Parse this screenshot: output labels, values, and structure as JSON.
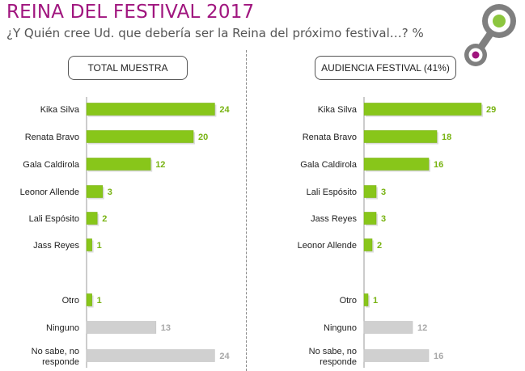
{
  "header": {
    "title": "REINA DEL FESTIVAL 2017",
    "subtitle": "¿Y Quién cree Ud. que debería ser la Reina del próximo festival…? %"
  },
  "colors": {
    "title": "#a0157e",
    "bar_green": "#88c61a",
    "bar_gray": "#d0d0d0",
    "value_green": "#78b312",
    "value_gray": "#a8a8a8",
    "logo_gray": "#7f7f7f",
    "logo_green": "#8cc63f",
    "logo_magenta": "#a0157e"
  },
  "chart_data": [
    {
      "type": "bar",
      "orientation": "horizontal",
      "title": "TOTAL MUESTRA",
      "unit": "%",
      "categories": [
        "Kika Silva",
        "Renata Bravo",
        "Gala Caldirola",
        "Leonor Allende",
        "Lali Espósito",
        "Jass Reyes",
        "",
        "Otro",
        "Ninguno",
        "No sabe, no responde"
      ],
      "values": [
        24,
        20,
        12,
        3,
        2,
        1,
        null,
        1,
        13,
        24
      ],
      "highlight": [
        "green",
        "green",
        "green",
        "green",
        "green",
        "green",
        null,
        "green",
        "gray",
        "gray"
      ],
      "xlim": [
        0,
        30
      ]
    },
    {
      "type": "bar",
      "orientation": "horizontal",
      "title": "AUDIENCIA FESTIVAL (41%)",
      "unit": "%",
      "categories": [
        "Kika Silva",
        "Renata Bravo",
        "Gala Caldirola",
        "Lali Espósito",
        "Jass Reyes",
        "Leonor Allende",
        "",
        "Otro",
        "Ninguno",
        "No sabe, no responde"
      ],
      "values": [
        29,
        18,
        16,
        3,
        3,
        2,
        null,
        1,
        12,
        16
      ],
      "highlight": [
        "green",
        "green",
        "green",
        "green",
        "green",
        "green",
        null,
        "green",
        "gray",
        "gray"
      ],
      "xlim": [
        0,
        30
      ]
    }
  ]
}
